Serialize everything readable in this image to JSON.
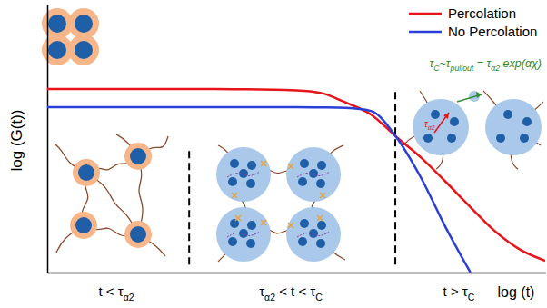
{
  "chart_data": {
    "type": "line",
    "x_label": "log (t)",
    "y_label": "log (G(t))",
    "x": [
      0,
      20,
      40,
      50,
      55,
      60,
      65,
      70,
      75,
      80,
      85,
      90,
      95,
      100
    ],
    "xlim": [
      0,
      100
    ],
    "ylim": [
      0,
      100
    ],
    "xticks": [],
    "yticks": [],
    "tick_labels": false,
    "grid": false,
    "legend": "upper right",
    "series": [
      {
        "name": "Percolation",
        "color": "#e8141b",
        "values": [
          68.5,
          68.5,
          68.4,
          68,
          67,
          63.4,
          59,
          50.8,
          43,
          33.9,
          24.4,
          15.3,
          8.5,
          4.4
        ]
      },
      {
        "name": "No Percolation",
        "color": "#2a3fd8",
        "values": [
          61.7,
          61.7,
          61.7,
          61.7,
          61.6,
          61.4,
          60.3,
          50.8,
          35.6,
          16.9,
          0,
          null,
          null,
          null
        ]
      }
    ],
    "vlines": [
      {
        "x": 28.5,
        "y": [
          3,
          47
        ],
        "line_style": "dashed"
      },
      {
        "x": 69.9,
        "y": [
          3,
          68
        ],
        "line_style": "dashed"
      }
    ],
    "regions": [
      {
        "parts": [
          {
            "text": "t < τ"
          },
          {
            "sub": "α2"
          }
        ]
      },
      {
        "parts": [
          {
            "text": "τ"
          },
          {
            "sub": "α2"
          },
          {
            "text": " < t < τ"
          },
          {
            "sub": "C"
          }
        ]
      },
      {
        "parts": [
          {
            "text": "t > τ"
          },
          {
            "sub": "C"
          }
        ]
      }
    ],
    "formula": {
      "color": "#2e8b2e",
      "parts": [
        {
          "text": "τ"
        },
        {
          "sub": "C"
        },
        {
          "text": "~τ"
        },
        {
          "sub": "pullout"
        },
        {
          "text": " = τ"
        },
        {
          "sub": "α2"
        },
        {
          "text": " exp(αχ)"
        }
      ]
    },
    "inset_label": {
      "color": "#e8141b",
      "parts": [
        {
          "text": "τ"
        },
        {
          "sub": "α2"
        }
      ]
    }
  }
}
